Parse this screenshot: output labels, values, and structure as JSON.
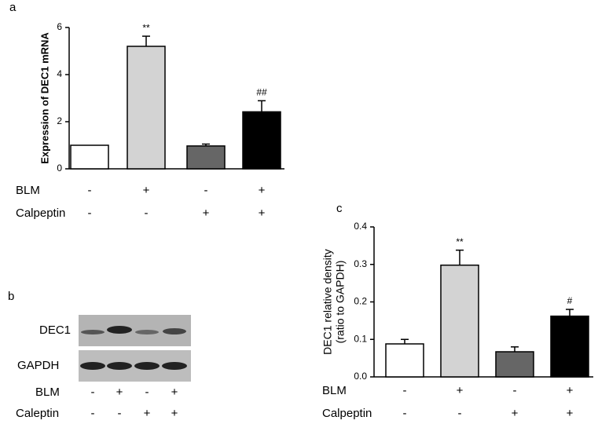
{
  "chart_data": [
    {
      "type": "bar",
      "panel": "a",
      "ylabel": "Expression of DEC1 mRNA",
      "categories": [
        null,
        null,
        null,
        null
      ],
      "values": [
        1,
        5.2,
        0.97,
        2.42
      ],
      "errors": [
        null,
        0.43,
        0.08,
        0.47
      ],
      "significance": [
        null,
        "**",
        null,
        "##"
      ],
      "colors": [
        "#ffffff",
        "#d3d3d3",
        "#666666",
        "#000000"
      ],
      "ylim": [
        0,
        6
      ],
      "yticks": [
        0,
        2,
        4,
        6
      ],
      "treatments": [
        {
          "name": "BLM",
          "values": [
            "-",
            "+",
            "-",
            "+"
          ]
        },
        {
          "name": "Calpeptin",
          "values": [
            "-",
            "-",
            "+",
            "+"
          ]
        }
      ]
    },
    {
      "type": "bar",
      "panel": "c",
      "ylabel": [
        "DEC1 relative density",
        "(ratio to GAPDH)"
      ],
      "categories": [
        null,
        null,
        null,
        null
      ],
      "values": [
        0.088,
        0.298,
        0.067,
        0.162
      ],
      "errors": [
        0.012,
        0.04,
        0.013,
        0.018
      ],
      "significance": [
        null,
        "**",
        null,
        "#"
      ],
      "colors": [
        "#ffffff",
        "#d3d3d3",
        "#666666",
        "#000000"
      ],
      "ylim": [
        0,
        0.4
      ],
      "yticks": [
        {
          "value": 0,
          "label": "0.0"
        },
        0.1,
        0.2,
        0.3,
        0.4
      ],
      "treatments": [
        {
          "name": "BLM",
          "values": [
            "-",
            "+",
            "-",
            "+"
          ]
        },
        {
          "name": "Calpeptin",
          "values": [
            "-",
            "-",
            "+",
            "+"
          ]
        }
      ]
    }
  ],
  "blot": {
    "panel": "b",
    "bands": [
      "DEC1",
      "GAPDH"
    ],
    "treatments": [
      {
        "name": "BLM",
        "values": [
          "-",
          "+",
          "-",
          "+"
        ]
      },
      {
        "name": "Caleptin",
        "values": [
          "-",
          "-",
          "+",
          "+"
        ]
      }
    ]
  }
}
